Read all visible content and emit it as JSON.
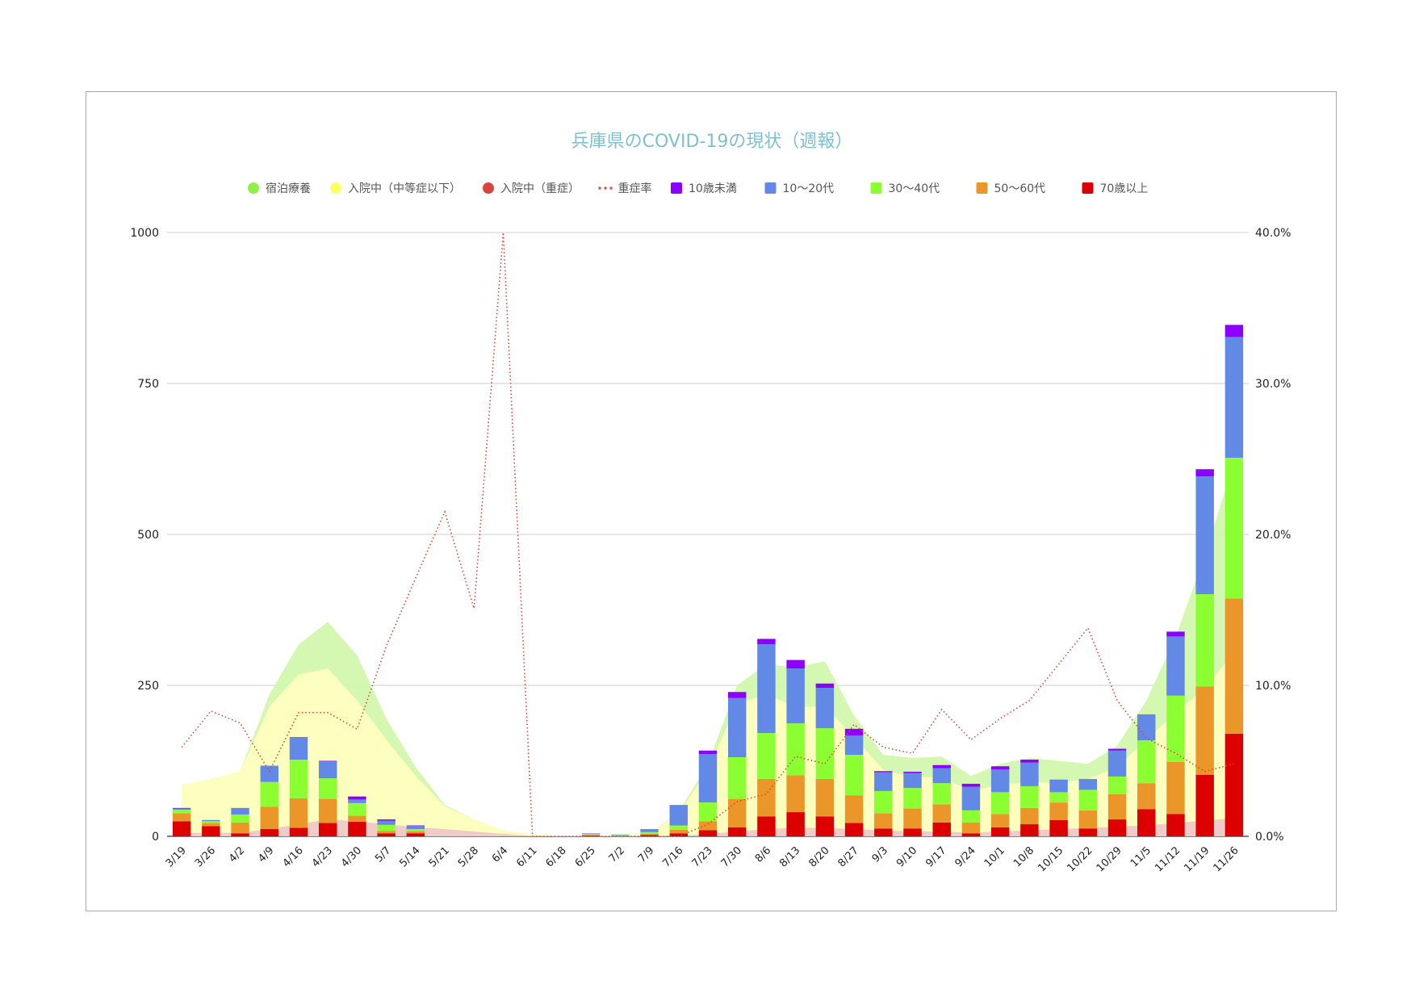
{
  "chart_data": {
    "type": "bar",
    "title": "兵庫県のCOVID-19の現状（週報）",
    "categories": [
      "3/19",
      "3/26",
      "4/2",
      "4/9",
      "4/16",
      "4/23",
      "4/30",
      "5/7",
      "5/14",
      "5/21",
      "5/28",
      "6/4",
      "6/11",
      "6/18",
      "6/25",
      "7/2",
      "7/9",
      "7/16",
      "7/23",
      "7/30",
      "8/6",
      "8/13",
      "8/20",
      "8/27",
      "9/3",
      "9/10",
      "9/17",
      "9/24",
      "10/1",
      "10/8",
      "10/15",
      "10/22",
      "10/29",
      "11/5",
      "11/12",
      "11/19",
      "11/26"
    ],
    "ylim": [
      0,
      1000
    ],
    "y_ticks": [
      "0",
      "250",
      "500",
      "750",
      "1000"
    ],
    "y2lim": [
      0,
      0.4
    ],
    "y2_ticks": [
      "0.0%",
      "10.0%",
      "20.0%",
      "30.0%",
      "40.0%"
    ],
    "grid": true,
    "legend_position": "top",
    "legend": [
      {
        "name": "宿泊療養",
        "marker": "circle",
        "color": "#8ef04a"
      },
      {
        "name": "入院中（中等症以下）",
        "marker": "circle",
        "color": "#ffff66"
      },
      {
        "name": "入院中（重症）",
        "marker": "circle",
        "color": "#d9453a"
      },
      {
        "name": "重症率",
        "marker": "dots",
        "color": "#d9453a"
      },
      {
        "name": "10歳未満",
        "marker": "square",
        "color": "#8b00ff"
      },
      {
        "name": "10～20代",
        "marker": "square",
        "color": "#6389e6"
      },
      {
        "name": "30～40代",
        "marker": "square",
        "color": "#8cff33"
      },
      {
        "name": "50～60代",
        "marker": "square",
        "color": "#eb9628"
      },
      {
        "name": "70歳以上",
        "marker": "square",
        "color": "#dd0000"
      }
    ],
    "bar_series": [
      {
        "name": "70歳以上",
        "color": "#dd0000",
        "values": [
          25,
          17,
          5,
          12,
          14,
          22,
          24,
          5,
          5,
          0,
          0,
          0,
          0,
          0,
          1,
          0,
          2,
          5,
          10,
          15,
          33,
          40,
          33,
          22,
          13,
          13,
          23,
          5,
          15,
          20,
          27,
          13,
          28,
          45,
          37,
          102,
          170
        ]
      },
      {
        "name": "50～60代",
        "color": "#eb9628",
        "values": [
          13,
          5,
          18,
          37,
          49,
          40,
          10,
          4,
          3,
          0,
          0,
          0,
          0,
          0,
          2,
          1,
          2,
          6,
          15,
          47,
          62,
          61,
          62,
          46,
          25,
          33,
          30,
          18,
          22,
          27,
          29,
          30,
          42,
          43,
          86,
          146,
          224
        ]
      },
      {
        "name": "30～40代",
        "color": "#8cff33",
        "values": [
          6,
          3,
          13,
          41,
          64,
          34,
          21,
          10,
          4,
          0,
          0,
          0,
          0,
          0,
          1,
          1,
          3,
          7,
          31,
          69,
          76,
          86,
          84,
          67,
          37,
          34,
          35,
          20,
          36,
          36,
          17,
          34,
          29,
          71,
          110,
          153,
          233
        ]
      },
      {
        "name": "10～20代",
        "color": "#6389e6",
        "values": [
          2,
          2,
          11,
          27,
          36,
          28,
          6,
          7,
          5,
          0,
          0,
          0,
          0,
          0,
          1,
          1,
          5,
          34,
          80,
          98,
          147,
          91,
          67,
          32,
          31,
          25,
          25,
          39,
          38,
          39,
          21,
          18,
          43,
          43,
          98,
          195,
          200
        ]
      },
      {
        "name": "10歳未満",
        "color": "#8b00ff",
        "values": [
          1,
          0,
          0,
          0,
          1,
          1,
          5,
          2,
          1,
          0,
          0,
          0,
          0,
          0,
          0,
          0,
          0,
          0,
          6,
          10,
          9,
          14,
          7,
          11,
          2,
          2,
          5,
          5,
          5,
          5,
          0,
          0,
          3,
          0,
          8,
          12,
          20
        ]
      }
    ],
    "area_series": [
      {
        "name": "宿泊療養",
        "color": "#d2f7ad",
        "values": [
          85,
          95,
          108,
          235,
          318,
          355,
          300,
          195,
          115,
          52,
          28,
          10,
          3,
          1,
          1,
          2,
          5,
          40,
          120,
          250,
          285,
          280,
          290,
          200,
          135,
          130,
          132,
          100,
          120,
          130,
          125,
          120,
          150,
          225,
          330,
          465,
          620
        ]
      },
      {
        "name": "入院中（中等症以下）",
        "color": "#ffffc0",
        "values": [
          85,
          95,
          108,
          215,
          268,
          278,
          225,
          160,
          100,
          50,
          28,
          10,
          3,
          1,
          1,
          2,
          5,
          38,
          110,
          220,
          235,
          215,
          215,
          165,
          110,
          98,
          98,
          75,
          85,
          90,
          88,
          95,
          115,
          160,
          205,
          245,
          305
        ]
      },
      {
        "name": "入院中（重症）",
        "color": "#f0c8c8",
        "values": [
          5,
          6,
          6,
          12,
          20,
          28,
          25,
          20,
          15,
          12,
          8,
          4,
          1,
          0,
          0,
          0,
          0,
          1,
          4,
          8,
          12,
          14,
          14,
          12,
          10,
          8,
          8,
          6,
          8,
          10,
          12,
          14,
          16,
          18,
          22,
          26,
          30
        ]
      }
    ],
    "line_series": {
      "name": "重症率",
      "color": "#d9453a",
      "values": [
        0.059,
        0.083,
        0.075,
        0.043,
        0.082,
        0.082,
        0.071,
        0.126,
        0.171,
        0.215,
        0.151,
        0.4,
        0.0,
        0.0,
        0.0,
        0.0,
        0.0,
        0.0,
        0.008,
        0.023,
        0.028,
        0.053,
        0.048,
        0.074,
        0.059,
        0.055,
        0.084,
        0.064,
        0.078,
        0.09,
        0.114,
        0.138,
        0.09,
        0.065,
        0.055,
        0.043,
        0.048
      ]
    }
  }
}
